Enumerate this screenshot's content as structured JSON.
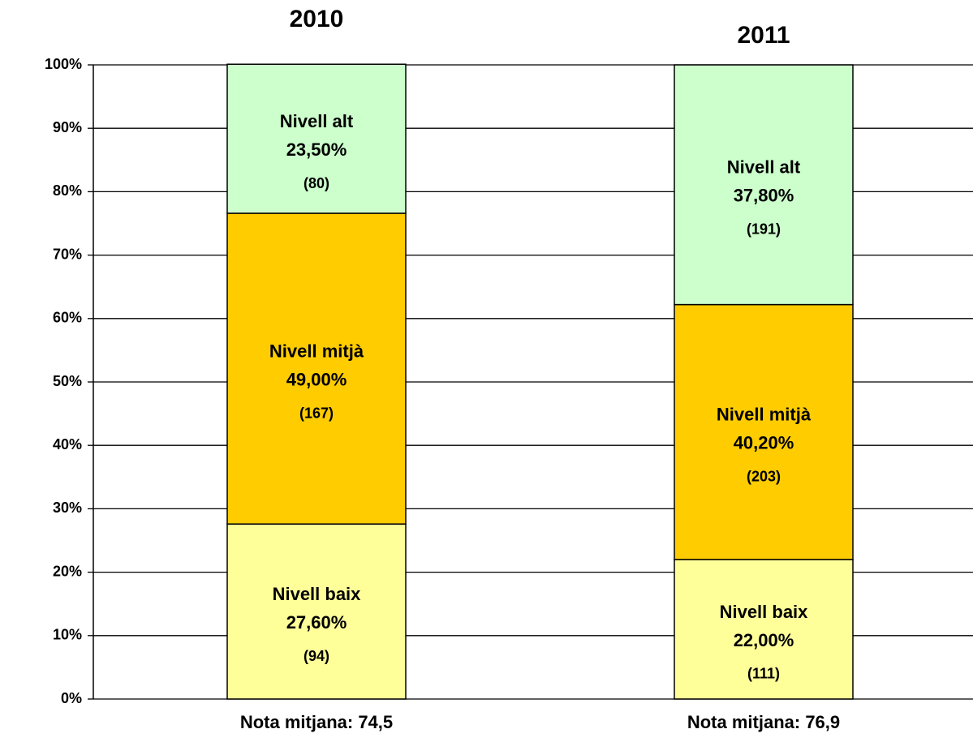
{
  "chart_data": {
    "type": "stacked_bar",
    "categories": [
      "2010",
      "2011"
    ],
    "notes": [
      "Nota mitjana: 74,5",
      "Nota mitjana: 76,9"
    ],
    "series": [
      {
        "name": "Nivell baix",
        "color": "#ffff99",
        "values": [
          27.6,
          22.0
        ],
        "value_labels": [
          "27,60%",
          "22,00%"
        ],
        "count_labels": [
          "(94)",
          "(111)"
        ]
      },
      {
        "name": "Nivell mitjà",
        "color": "#ffcc00",
        "values": [
          49.0,
          40.2
        ],
        "value_labels": [
          "49,00%",
          "40,20%"
        ],
        "count_labels": [
          "(167)",
          "(203)"
        ]
      },
      {
        "name": "Nivell alt",
        "color": "#ccffcc",
        "values": [
          23.5,
          37.8
        ],
        "value_labels": [
          "23,50%",
          "37,80%"
        ],
        "count_labels": [
          "(80)",
          "(191)"
        ]
      }
    ],
    "ylim": [
      0,
      100
    ],
    "yticks": [
      {
        "value": 0,
        "label": "0%"
      },
      {
        "value": 10,
        "label": "10%"
      },
      {
        "value": 20,
        "label": "20%"
      },
      {
        "value": 30,
        "label": "30%"
      },
      {
        "value": 40,
        "label": "40%"
      },
      {
        "value": 50,
        "label": "50%"
      },
      {
        "value": 60,
        "label": "60%"
      },
      {
        "value": 70,
        "label": "70%"
      },
      {
        "value": 80,
        "label": "80%"
      },
      {
        "value": 90,
        "label": "90%"
      },
      {
        "value": 100,
        "label": "100%"
      }
    ],
    "grid": true
  }
}
